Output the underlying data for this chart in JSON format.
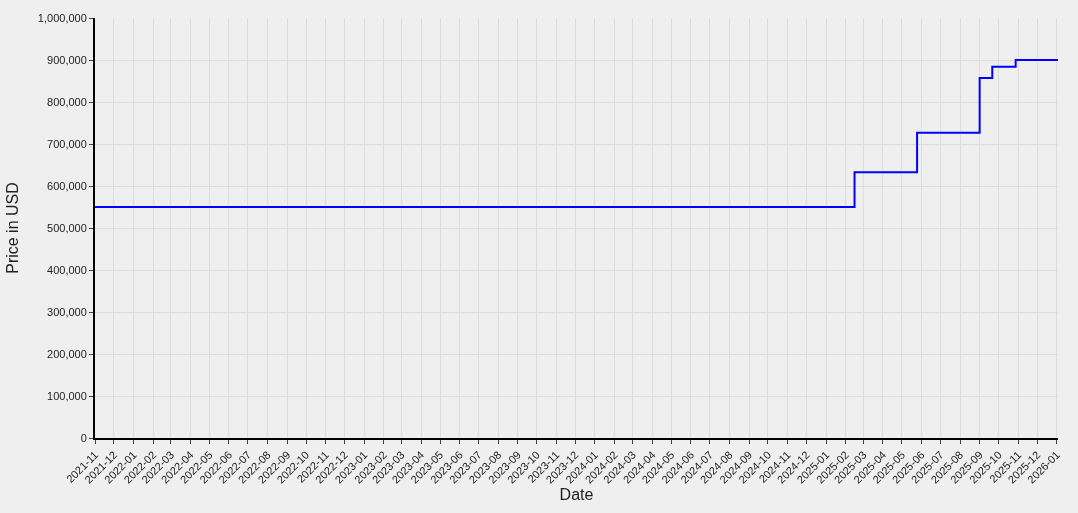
{
  "chart_data": {
    "type": "step",
    "xlabel": "Date",
    "ylabel": "Price in USD",
    "x": [
      "2021-11-01",
      "2025-02-15",
      "2025-05-25",
      "2025-09-01",
      "2025-09-21",
      "2025-10-28",
      "2026-01-03"
    ],
    "series": [
      {
        "color": "#0000ff",
        "values": [
          550000,
          633000,
          727000,
          857000,
          884000,
          900000,
          900000
        ]
      }
    ],
    "xlim": [
      "2021-11-01",
      "2026-01-03"
    ],
    "xticks": [
      "2021-11",
      "2021-12",
      "2022-01",
      "2022-02",
      "2022-03",
      "2022-04",
      "2022-05",
      "2022-06",
      "2022-07",
      "2022-08",
      "2022-09",
      "2022-10",
      "2022-11",
      "2022-12",
      "2023-01",
      "2023-02",
      "2023-03",
      "2023-04",
      "2023-05",
      "2023-06",
      "2023-07",
      "2023-08",
      "2023-09",
      "2023-10",
      "2023-11",
      "2023-12",
      "2024-01",
      "2024-02",
      "2024-03",
      "2024-04",
      "2024-05",
      "2024-06",
      "2024-07",
      "2024-08",
      "2024-09",
      "2024-10",
      "2024-11",
      "2024-12",
      "2025-01",
      "2025-02",
      "2025-03",
      "2025-04",
      "2025-05",
      "2025-06",
      "2025-07",
      "2025-08",
      "2025-09",
      "2025-10",
      "2025-11",
      "2025-12",
      "2026-01"
    ],
    "ylim": [
      0,
      1000000
    ],
    "yticks": [
      0,
      {
        "value": 100000,
        "label": "100,000"
      },
      {
        "value": 200000,
        "label": "200,000"
      },
      {
        "value": 300000,
        "label": "300,000"
      },
      {
        "value": 400000,
        "label": "400,000"
      },
      {
        "value": 500000,
        "label": "500,000"
      },
      {
        "value": 600000,
        "label": "600,000"
      },
      {
        "value": 700000,
        "label": "700,000"
      },
      {
        "value": 800000,
        "label": "800,000"
      },
      {
        "value": 900000,
        "label": "900,000"
      },
      {
        "value": 1000000,
        "label": "1,000,000"
      }
    ],
    "grid": true,
    "marker": "none",
    "line_style": "solid"
  }
}
